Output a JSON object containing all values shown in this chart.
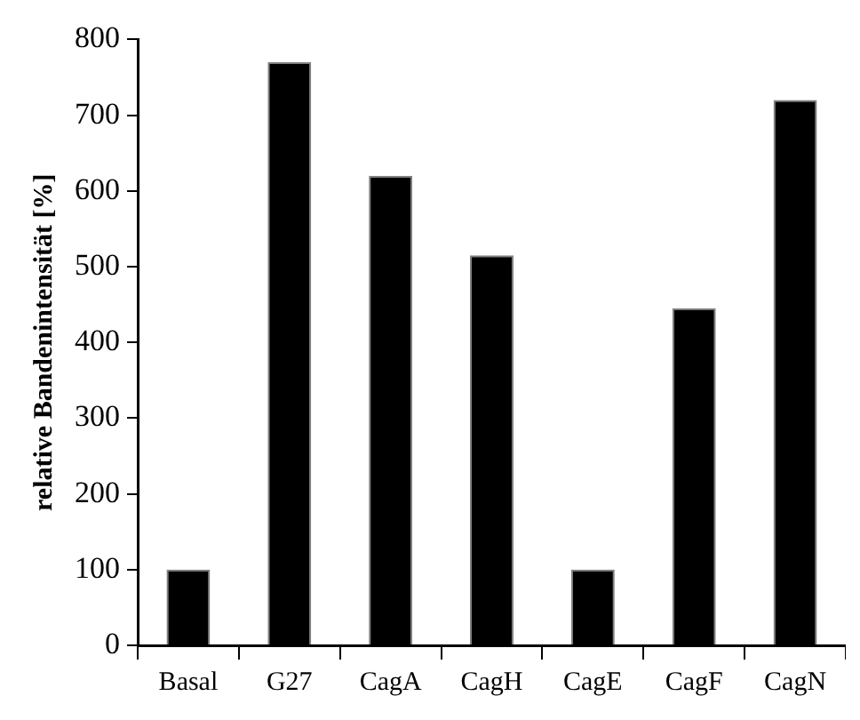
{
  "chart_data": {
    "type": "bar",
    "ylabel": "relative Bandenintensität [%]",
    "categories": [
      "Basal",
      "G27",
      "CagA",
      "CagH",
      "CagE",
      "CagF",
      "CagN"
    ],
    "values": [
      100,
      770,
      620,
      515,
      100,
      445,
      720
    ],
    "color": "#000000",
    "ylim": [
      0,
      800
    ],
    "yticks": [
      0,
      100,
      200,
      300,
      400,
      500,
      600,
      700,
      800
    ],
    "grid": false,
    "legend": false
  }
}
